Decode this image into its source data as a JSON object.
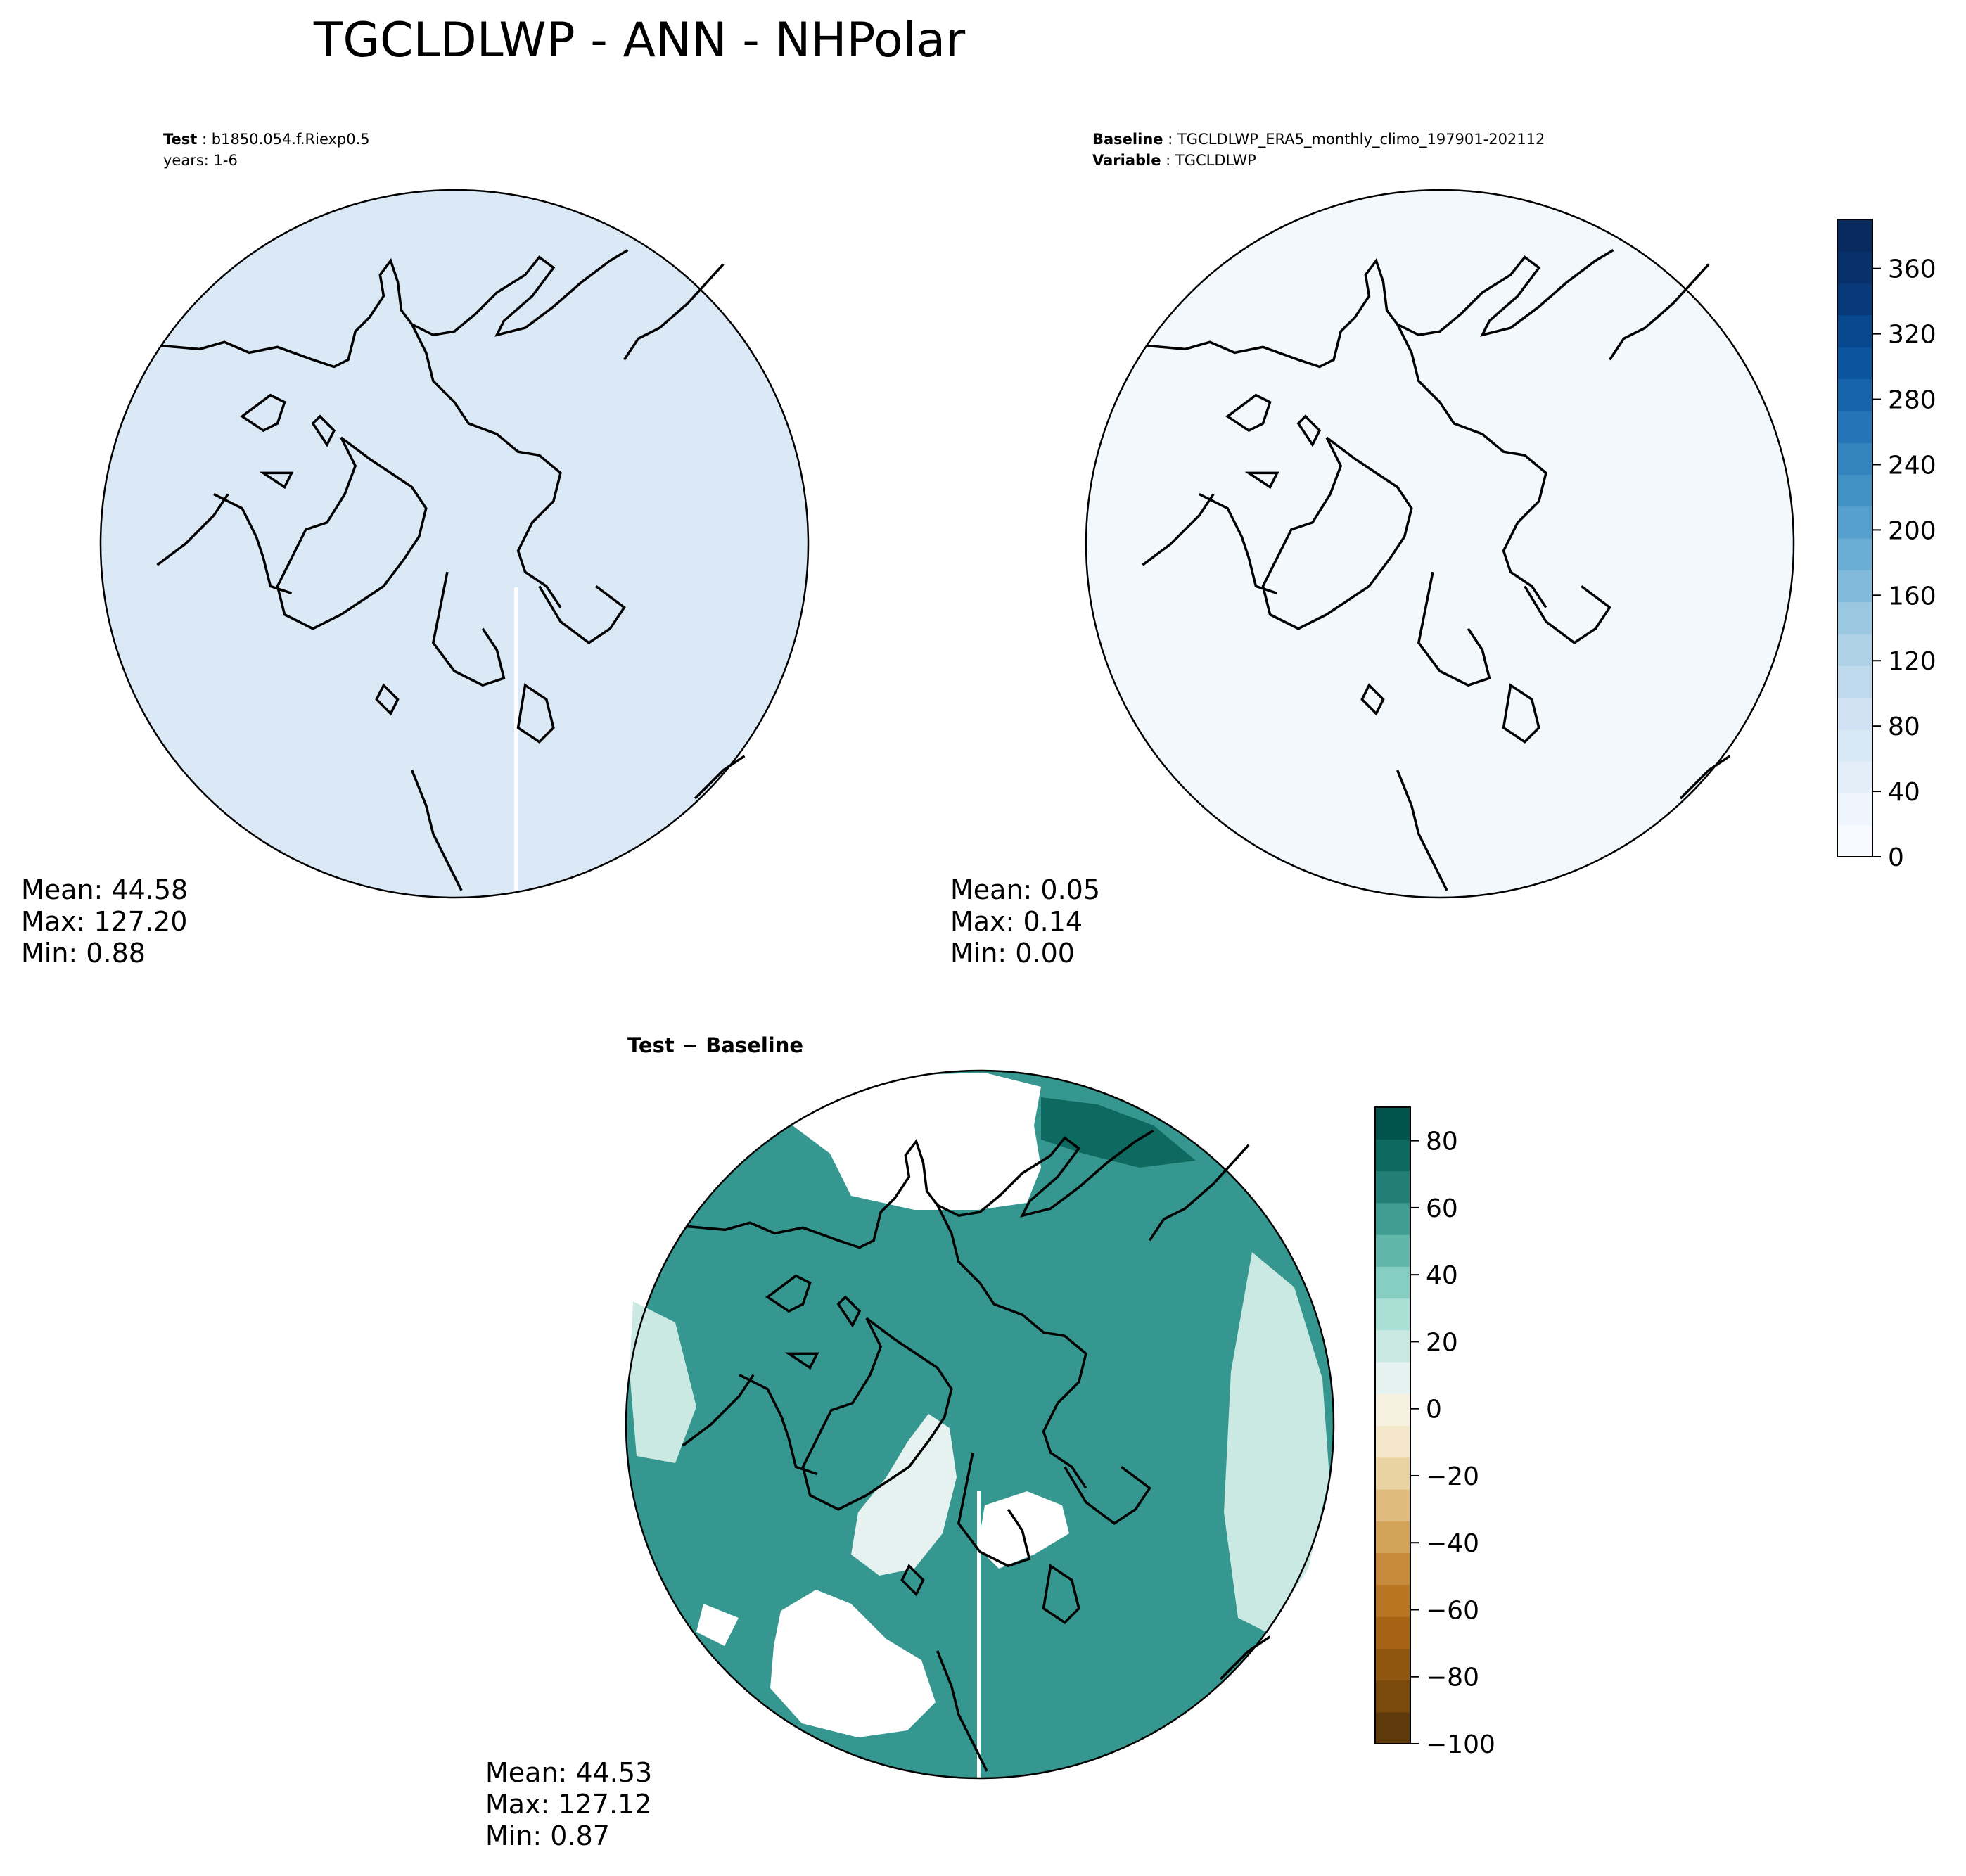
{
  "title": "TGCLDLWP - ANN - NHPolar",
  "panels": [
    {
      "id": "test",
      "header": [
        {
          "bold": "Test",
          "sep": " : ",
          "text": "b1850.054.f.Riexp0.5"
        },
        {
          "bold": "",
          "sep": "",
          "text": "years: 1-6"
        }
      ],
      "stats": {
        "mean": "Mean: 44.58",
        "max": "Max: 127.20",
        "min": "Min:  0.88"
      },
      "fill_color": "#dbe8f6"
    },
    {
      "id": "baseline",
      "header": [
        {
          "bold": "Baseline",
          "sep": " : ",
          "text": "TGCLDLWP_ERA5_monthly_climo_197901-202112"
        },
        {
          "bold": "Variable",
          "sep": " : ",
          "text": "TGCLDLWP"
        }
      ],
      "stats": {
        "mean": "Mean:  0.05",
        "max": "Max:  0.14",
        "min": "Min:  0.00"
      },
      "fill_color": "#f3f8fd"
    },
    {
      "id": "diff",
      "header": [
        {
          "bold": "Test − Baseline",
          "sep": "",
          "text": ""
        }
      ],
      "stats": {
        "mean": "Mean: 44.53",
        "max": "Max: 127.12",
        "min": "Min:  0.87"
      },
      "fill_color": "#35978f"
    }
  ],
  "colorbars": {
    "blues": {
      "ticks": [
        "0",
        "40",
        "80",
        "120",
        "160",
        "200",
        "240",
        "280",
        "320",
        "360"
      ],
      "tick_values": [
        0,
        40,
        80,
        120,
        160,
        200,
        240,
        280,
        320,
        360
      ],
      "range": [
        0,
        390
      ],
      "colors": [
        "#f7fbff",
        "#eef5fc",
        "#e3eef9",
        "#d9e8f5",
        "#cfe1f2",
        "#c1d9ed",
        "#afd1e7",
        "#9ac8e0",
        "#82badb",
        "#6aaed6",
        "#56a0ce",
        "#4292c6",
        "#3383be",
        "#2474b7",
        "#1764ab",
        "#0b559f",
        "#08488e",
        "#083a7a",
        "#08306b",
        "#082a5f"
      ]
    },
    "diverging": {
      "ticks": [
        "80",
        "60",
        "40",
        "20",
        "0",
        "−20",
        "−40",
        "−60",
        "−80",
        "−100"
      ],
      "tick_values": [
        80,
        60,
        40,
        20,
        0,
        -20,
        -40,
        -60,
        -80,
        -100
      ],
      "range": [
        -100,
        90
      ],
      "colors": [
        "#5e3a0a",
        "#7a4a0c",
        "#8f560f",
        "#a66314",
        "#b87623",
        "#c68a3a",
        "#d3a35a",
        "#dfbb7d",
        "#ead3a2",
        "#f4e6c8",
        "#f6f0e1",
        "#e6f2ef",
        "#cbe9e3",
        "#aadfd5",
        "#85cec1",
        "#60b7a9",
        "#3f9d91",
        "#227f77",
        "#0e6960",
        "#00524a"
      ]
    }
  }
}
